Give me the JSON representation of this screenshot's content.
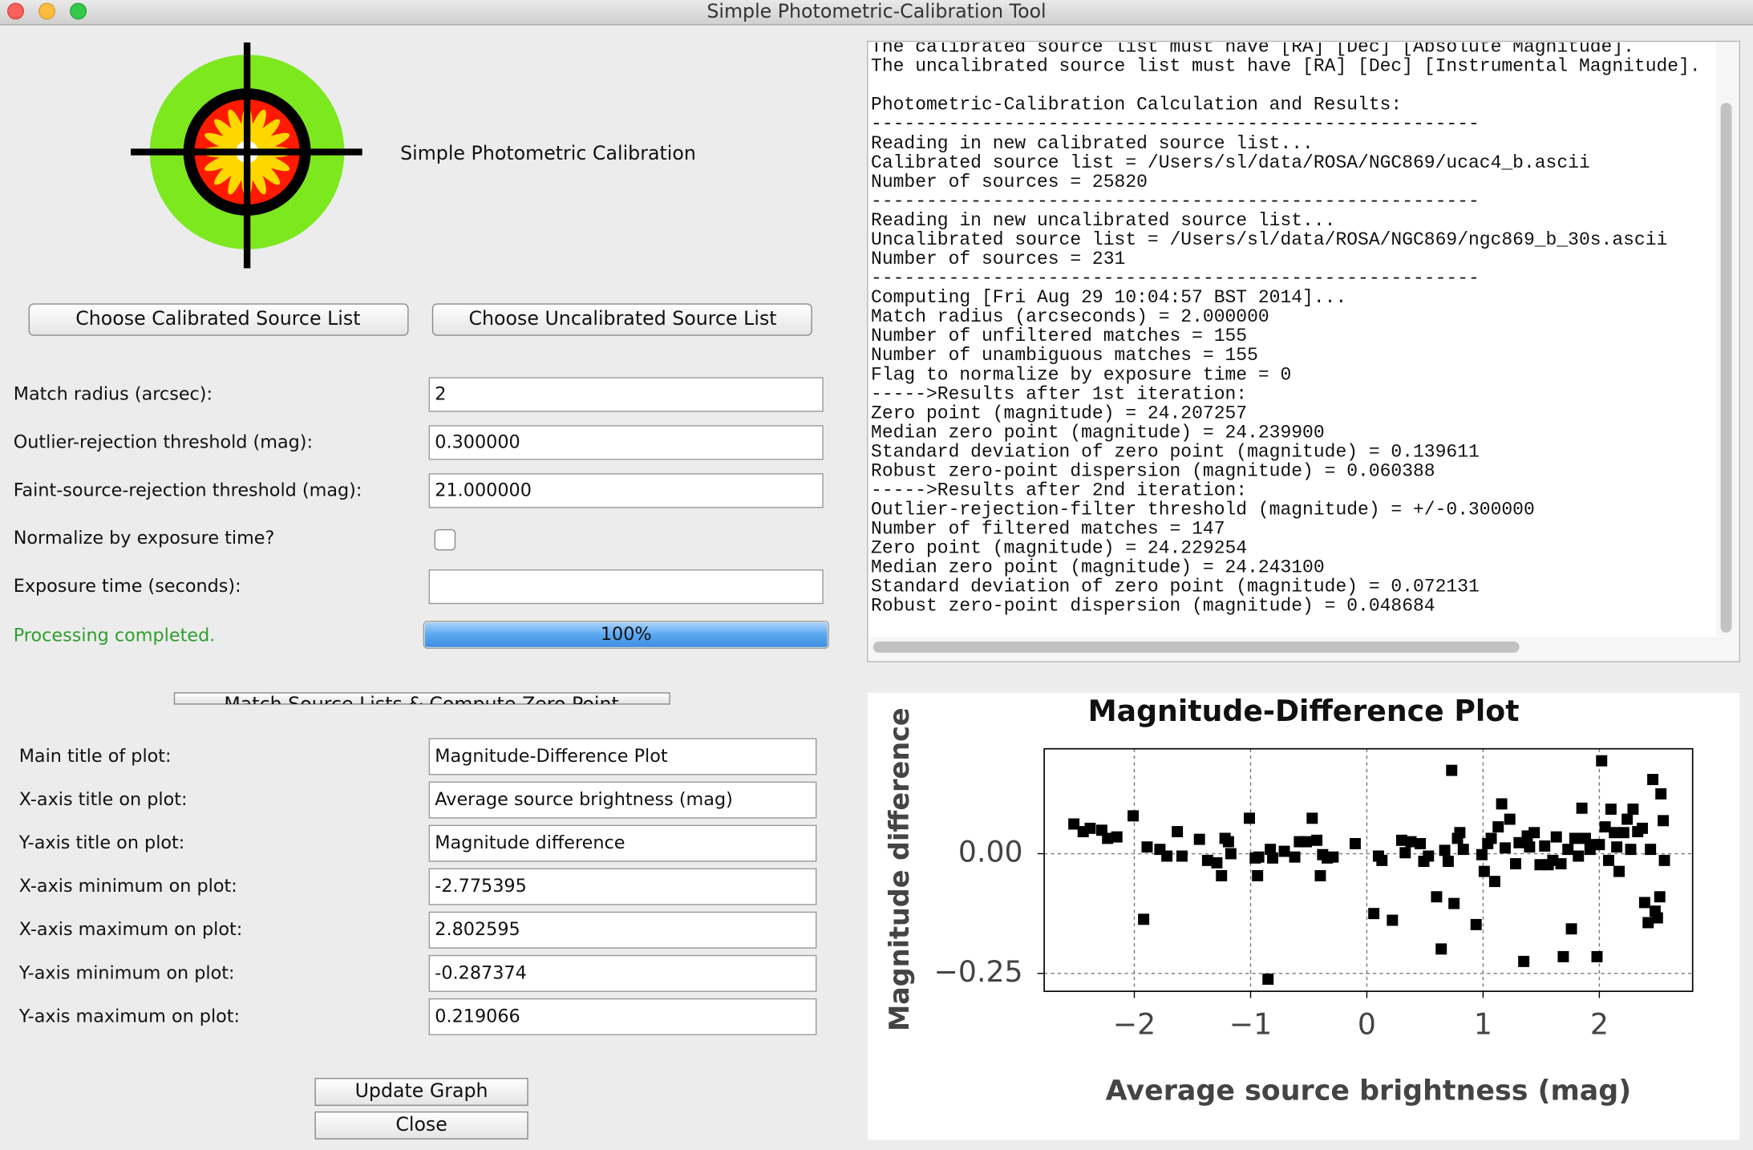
{
  "window": {
    "title": "Simple Photometric-Calibration Tool"
  },
  "header": {
    "title": "Simple Photometric Calibration"
  },
  "buttons": {
    "calibrated": "Choose Calibrated Source List",
    "uncalibrated": "Choose Uncalibrated Source List",
    "compute": "Match Source Lists & Compute Zero Point",
    "update": "Update Graph",
    "close": "Close"
  },
  "settings": [
    {
      "label": "Match radius (arcsec):",
      "value": "2"
    },
    {
      "label": "Outlier-rejection threshold (mag):",
      "value": "0.300000"
    },
    {
      "label": "Faint-source-rejection threshold (mag):",
      "value": "21.000000"
    },
    {
      "label": "Normalize by exposure time?",
      "checked": false
    },
    {
      "label": "Exposure time (seconds):"
    }
  ],
  "status": {
    "message": "Processing completed.",
    "progress": 100,
    "progress_label": "100%"
  },
  "plot_settings": [
    {
      "label": "Main title of plot:",
      "value": "Magnitude-Difference Plot"
    },
    {
      "label": "X-axis title on plot:",
      "value": "Average source brightness (mag)"
    },
    {
      "label": "Y-axis title on plot:",
      "value": "Magnitude difference"
    },
    {
      "label": "X-axis minimum on plot:",
      "value": "-2.775395"
    },
    {
      "label": "X-axis maximum on plot:",
      "value": "2.802595"
    },
    {
      "label": "Y-axis minimum on plot:",
      "value": "-0.287374"
    },
    {
      "label": "Y-axis maximum on plot:",
      "value": "0.219066"
    }
  ],
  "log": [
    [
      "The calibrated source list must have [RA] [Dec] [Absolute Magnitude].",
      "The uncalibrated source list must have [RA] [Dec] [Instrumental Magnitude]."
    ],
    [
      "Photometric-Calibration Calculation and Results:",
      "-------------------------------------------------------",
      "Reading in new calibrated source list...",
      "Calibrated source list = /Users/sl/data/ROSA/NGC869/ucac4_b.ascii",
      "Number of sources = 25820",
      "-------------------------------------------------------",
      "Reading in new uncalibrated source list...",
      "Uncalibrated source list = /Users/sl/data/ROSA/NGC869/ngc869_b_30s.ascii",
      "Number of sources = 231",
      "-------------------------------------------------------",
      "Computing [Fri Aug 29 10:04:57 BST 2014]...",
      "Match radius (arcseconds) = 2.000000",
      "Number of unfiltered matches = 155",
      "Number of unambiguous matches = 155",
      "Flag to normalize by exposure time = 0",
      "----->Results after 1st iteration:",
      "Zero point (magnitude) = 24.207257",
      "Median zero point (magnitude) = 24.239900",
      "Standard deviation of zero point (magnitude) = 0.139611",
      "Robust zero-point dispersion (magnitude) = 0.060388",
      "----->Results after 2nd iteration:",
      "Outlier-rejection-filter threshold (magnitude) = +/-0.300000",
      "Number of filtered matches = 147",
      "Zero point (magnitude) = 24.229254",
      "Median zero point (magnitude) = 24.243100",
      "Standard deviation of zero point (magnitude) = 0.072131",
      "Robust zero-point dispersion (magnitude) = 0.048684"
    ]
  ],
  "chart_data": {
    "type": "scatter",
    "title": "Magnitude-Difference Plot",
    "x_label": "Average source brightness (mag)",
    "y_label": "Magnitude difference",
    "color": "#000000",
    "grid": true,
    "xlim": [
      -2.775395,
      2.802595
    ],
    "ylim": [
      -0.287374,
      0.219066
    ],
    "xticks": [
      {
        "value": -2,
        "label": "−2"
      },
      {
        "value": -1,
        "label": "−1"
      },
      0,
      1,
      2
    ],
    "yticks": [
      {
        "value": -0.25,
        "label": "−0.25"
      },
      {
        "value": 0,
        "label": "0.00"
      }
    ],
    "x": [
      -2.52,
      -2.44,
      -2.38,
      -2.28,
      -2.23,
      -2.15,
      -2.01,
      -1.92,
      -1.89,
      -1.78,
      -1.72,
      -1.63,
      -1.59,
      -1.44,
      -1.37,
      -1.29,
      -1.25,
      -1.22,
      -1.19,
      -1.17,
      -1.01,
      -0.96,
      -0.94,
      -0.93,
      -0.85,
      -0.83,
      -0.81,
      -0.71,
      -0.62,
      -0.58,
      -0.52,
      -0.47,
      -0.43,
      -0.4,
      -0.38,
      -0.34,
      -0.29,
      -0.1,
      0.06,
      0.1,
      0.13,
      0.22,
      0.3,
      0.33,
      0.38,
      0.46,
      0.49,
      0.53,
      0.6,
      0.64,
      0.67,
      0.7,
      0.73,
      0.75,
      0.78,
      0.8,
      0.83,
      0.94,
      0.99,
      1.01,
      1.04,
      1.07,
      1.1,
      1.13,
      1.16,
      1.19,
      1.23,
      1.28,
      1.31,
      1.35,
      1.38,
      1.4,
      1.44,
      1.49,
      1.53,
      1.56,
      1.6,
      1.63,
      1.67,
      1.69,
      1.73,
      1.76,
      1.79,
      1.82,
      1.85,
      1.88,
      1.92,
      1.95,
      1.98,
      2.0,
      2.02,
      2.05,
      2.08,
      2.1,
      2.13,
      2.15,
      2.17,
      2.21,
      2.24,
      2.27,
      2.29,
      2.33,
      2.37,
      2.39,
      2.42,
      2.44,
      2.46,
      2.48,
      2.5,
      2.52,
      2.53,
      2.55,
      2.56
    ],
    "y": [
      0.062,
      0.046,
      0.053,
      0.049,
      0.032,
      0.035,
      0.079,
      -0.137,
      0.014,
      0.009,
      -0.005,
      0.046,
      -0.005,
      0.03,
      -0.014,
      -0.019,
      -0.046,
      0.032,
      0.025,
      0,
      0.074,
      -0.009,
      -0.046,
      -0.007,
      -0.262,
      0.009,
      -0.009,
      0.005,
      -0.007,
      0.025,
      0.025,
      0.074,
      0.028,
      -0.046,
      -0.002,
      -0.009,
      -0.007,
      0.021,
      -0.125,
      -0.005,
      -0.014,
      -0.139,
      0.028,
      0.002,
      0.025,
      0.021,
      -0.016,
      -0.005,
      -0.09,
      -0.199,
      0.007,
      -0.016,
      0.174,
      -0.104,
      0.032,
      0.044,
      0.009,
      -0.148,
      -0.002,
      -0.037,
      0.021,
      0.032,
      -0.058,
      0.056,
      0.104,
      0.012,
      0.072,
      -0.021,
      0.023,
      -0.225,
      0.037,
      0.014,
      0.044,
      -0.023,
      0.016,
      -0.023,
      -0.014,
      0.035,
      -0.021,
      -0.215,
      0.009,
      -0.157,
      0.032,
      -0.005,
      0.095,
      0.032,
      0.009,
      0.019,
      -0.215,
      0.019,
      0.194,
      0.056,
      -0.014,
      0.093,
      0.044,
      0.014,
      -0.037,
      0.044,
      0.072,
      0.009,
      0.093,
      0.046,
      0.053,
      -0.102,
      -0.144,
      0.009,
      0.155,
      -0.12,
      -0.134,
      -0.09,
      0.125,
      0.069,
      -0.014
    ]
  }
}
